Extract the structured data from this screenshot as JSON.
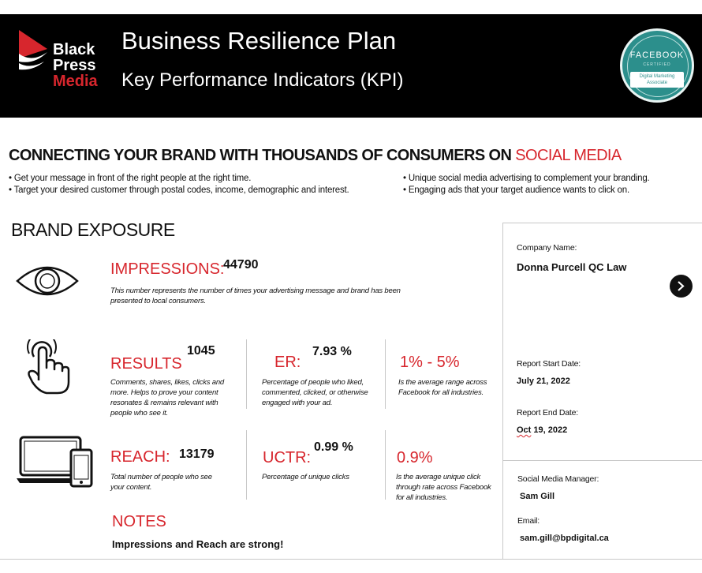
{
  "header": {
    "logo": [
      "Black",
      "Press",
      "Media"
    ],
    "title": "Business Resilience Plan",
    "subtitle": "Key Performance Indicators (KPI)",
    "badge": {
      "title": "FACEBOOK",
      "certified": "CERTIFIED",
      "line1": "Digital Marketing",
      "line2": "Associate"
    }
  },
  "intro": {
    "headline": "CONNECTING YOUR BRAND WITH THOUSANDS OF CONSUMERS ON ",
    "headline_accent": "SOCIAL MEDIA",
    "bullets": [
      "• Get your message in front of the right people at the right time.",
      "• Target your desired customer through postal codes, income, demographic and interest.",
      "• Unique social media advertising to complement your branding.",
      "• Engaging ads that your target audience wants to click on."
    ]
  },
  "exposure": {
    "heading": "BRAND EXPOSURE",
    "impressions": {
      "label": "IMPRESSIONS:",
      "value": "44790",
      "desc": "This number represents the number of times your advertising message and brand has been presented to local consumers."
    },
    "results": {
      "label": "RESULTS",
      "value": "1045",
      "desc": "Comments, shares, likes, clicks and more. Helps to prove your content resonates & remains relevant with people who see it."
    },
    "er": {
      "label": "ER:",
      "value": "7.93 %",
      "desc": "Percentage of people who liked, commented, clicked, or otherwise engaged with your ad."
    },
    "er_range": {
      "label": "1% - 5%",
      "desc": "Is the average range across Facebook for all industries."
    },
    "reach": {
      "label": "REACH:",
      "value": "13179",
      "desc": "Total number of people who see your content."
    },
    "uctr": {
      "label": "UCTR:",
      "value": "0.99 %",
      "desc": "Percentage of unique clicks"
    },
    "uctr_avg": {
      "label": "0.9%",
      "desc": "Is the average unique click through rate across Facebook for all industries."
    },
    "notes": {
      "label": "NOTES",
      "text": "Impressions and Reach are strong!"
    }
  },
  "panel": {
    "company_label": "Company Name:",
    "company_value": "Donna Purcell QC Law",
    "start_label": "Report Start Date:",
    "start_value": "July 21,  2022",
    "end_label": "Report End Date:",
    "end_month": "Oct",
    "end_rest": " 19,  2022",
    "manager_label": "Social Media Manager:",
    "manager_value": "Sam Gill",
    "email_label": "Email:",
    "email_value": "sam.gill@bpdigital.ca"
  },
  "colors": {
    "accent": "#d7262d",
    "header_bg": "#000000",
    "badge": "#2c8f8c"
  },
  "icons": [
    "black-press-logo-icon",
    "eye-icon",
    "tap-hand-icon",
    "laptop-phone-icon",
    "chevron-right-icon"
  ]
}
